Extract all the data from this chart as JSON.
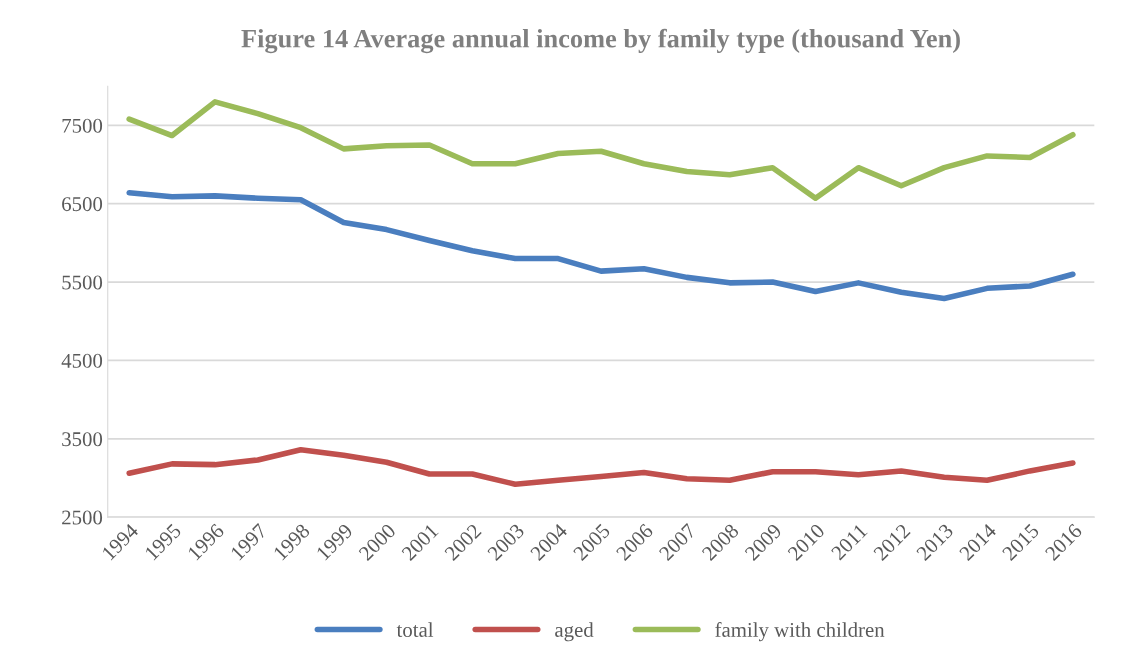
{
  "chart_data": {
    "type": "line",
    "title": "Figure 14 Average annual income by family type (thousand Yen)",
    "categories": [
      "1994",
      "1995",
      "1996",
      "1997",
      "1998",
      "1999",
      "2000",
      "2001",
      "2002",
      "2003",
      "2004",
      "2005",
      "2006",
      "2007",
      "2008",
      "2009",
      "2010",
      "2011",
      "2012",
      "2013",
      "2014",
      "2015",
      "2016"
    ],
    "series": [
      {
        "name": "total",
        "color": "#4a7ebf",
        "values": [
          6640,
          6590,
          6600,
          6570,
          6550,
          6260,
          6170,
          6030,
          5900,
          5800,
          5800,
          5640,
          5670,
          5560,
          5490,
          5500,
          5380,
          5490,
          5370,
          5290,
          5420,
          5450,
          5600
        ]
      },
      {
        "name": "aged",
        "color": "#c0504d",
        "values": [
          3060,
          3180,
          3170,
          3230,
          3360,
          3290,
          3200,
          3050,
          3050,
          2920,
          2970,
          3020,
          3070,
          2990,
          2970,
          3080,
          3080,
          3040,
          3090,
          3010,
          2970,
          3090,
          3190
        ]
      },
      {
        "name": "family with children",
        "color": "#9bbb59",
        "values": [
          7580,
          7370,
          7800,
          7650,
          7470,
          7200,
          7240,
          7250,
          7010,
          7010,
          7140,
          7170,
          7010,
          6910,
          6870,
          6960,
          6570,
          6960,
          6730,
          6960,
          7110,
          7090,
          7380
        ]
      }
    ],
    "ylim": [
      2500,
      8000
    ],
    "yticks": [
      2500,
      3500,
      4500,
      5500,
      6500,
      7500
    ],
    "grid": "y",
    "legend": "bottom",
    "marker": "none",
    "line_style": "solid"
  }
}
